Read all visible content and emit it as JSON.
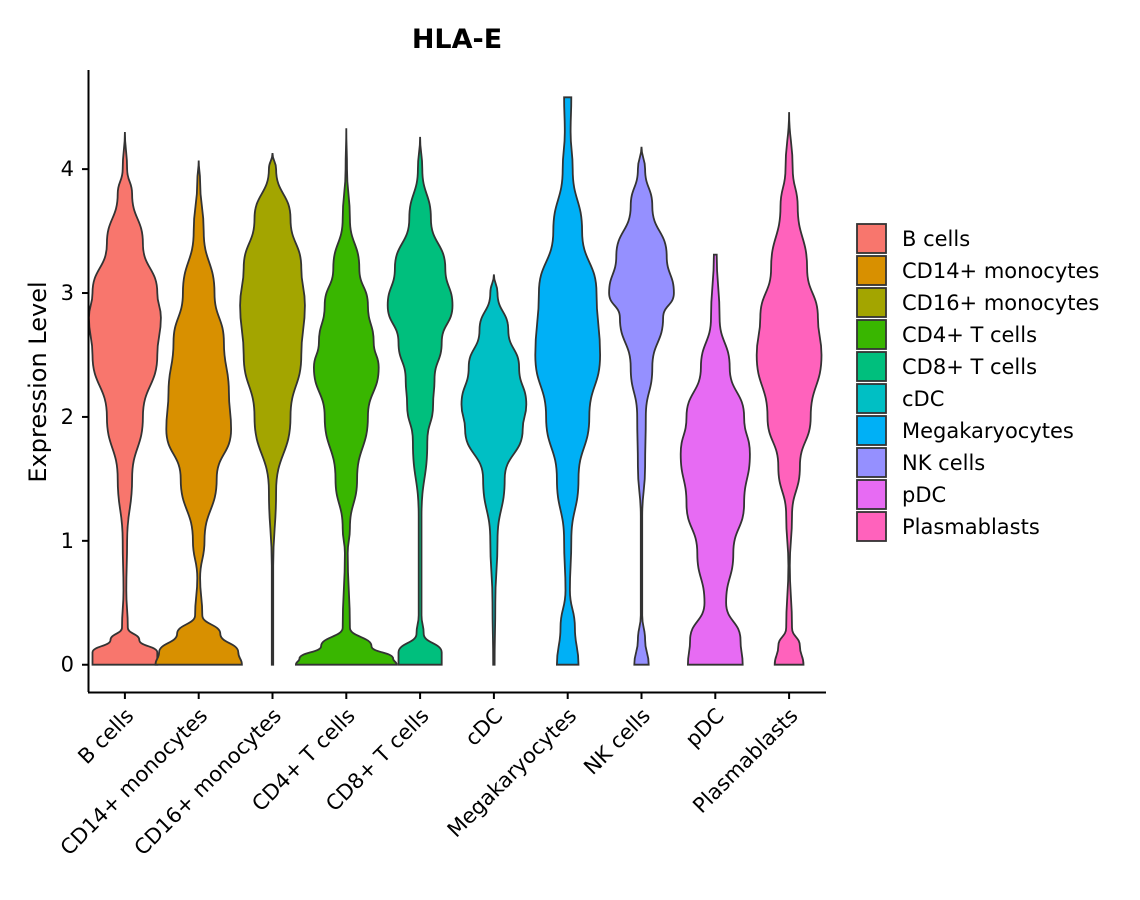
{
  "chart_data": {
    "type": "violin",
    "title": "HLA-E",
    "xlabel": "",
    "ylabel": "Expression Level",
    "ylim": [
      -0.22,
      4.8
    ],
    "yticks": [
      0,
      1,
      2,
      3,
      4
    ],
    "grid": false,
    "legend_position": "right",
    "categories": [
      "B cells",
      "CD14+ monocytes",
      "CD16+ monocytes",
      "CD4+ T cells",
      "CD8+ T cells",
      "cDC",
      "Megakaryocytes",
      "NK cells",
      "pDC",
      "Plasmablasts"
    ],
    "colors": [
      "#F8766D",
      "#D89000",
      "#A3A500",
      "#39B600",
      "#00BF7D",
      "#00BFC4",
      "#00B0F6",
      "#9590FF",
      "#E76BF3",
      "#FF62BC"
    ],
    "series": [
      {
        "name": "B cells",
        "y_range": [
          0,
          4.3
        ],
        "density": [
          [
            0,
            0.45
          ],
          [
            0.1,
            0.45
          ],
          [
            0.2,
            0.2
          ],
          [
            0.3,
            0.04
          ],
          [
            0.6,
            0.02
          ],
          [
            1.0,
            0.03
          ],
          [
            1.5,
            0.1
          ],
          [
            2.0,
            0.25
          ],
          [
            2.5,
            0.45
          ],
          [
            2.8,
            0.5
          ],
          [
            3.0,
            0.45
          ],
          [
            3.4,
            0.25
          ],
          [
            3.8,
            0.1
          ],
          [
            4.0,
            0.03
          ],
          [
            4.3,
            0.0
          ]
        ]
      },
      {
        "name": "CD14+ monocytes",
        "y_range": [
          0,
          4.07
        ],
        "density": [
          [
            0,
            0.6
          ],
          [
            0.1,
            0.55
          ],
          [
            0.25,
            0.3
          ],
          [
            0.4,
            0.05
          ],
          [
            0.7,
            0.02
          ],
          [
            1.0,
            0.08
          ],
          [
            1.5,
            0.25
          ],
          [
            1.9,
            0.45
          ],
          [
            2.2,
            0.42
          ],
          [
            2.6,
            0.35
          ],
          [
            3.0,
            0.22
          ],
          [
            3.5,
            0.07
          ],
          [
            3.9,
            0.02
          ],
          [
            4.07,
            0.0
          ]
        ]
      },
      {
        "name": "CD16+ monocytes",
        "y_range": [
          0,
          4.13
        ],
        "density": [
          [
            0,
            0.01
          ],
          [
            0.8,
            0.01
          ],
          [
            1.4,
            0.05
          ],
          [
            2.0,
            0.25
          ],
          [
            2.5,
            0.4
          ],
          [
            2.9,
            0.45
          ],
          [
            3.2,
            0.4
          ],
          [
            3.6,
            0.25
          ],
          [
            4.0,
            0.05
          ],
          [
            4.13,
            0.0
          ]
        ]
      },
      {
        "name": "CD4+ T cells",
        "y_range": [
          0,
          4.33
        ],
        "density": [
          [
            0,
            0.7
          ],
          [
            0.05,
            0.65
          ],
          [
            0.15,
            0.35
          ],
          [
            0.3,
            0.05
          ],
          [
            0.9,
            0.02
          ],
          [
            1.1,
            0.05
          ],
          [
            1.5,
            0.15
          ],
          [
            2.0,
            0.3
          ],
          [
            2.4,
            0.45
          ],
          [
            2.6,
            0.38
          ],
          [
            2.9,
            0.3
          ],
          [
            3.2,
            0.18
          ],
          [
            3.6,
            0.05
          ],
          [
            4.0,
            0.01
          ],
          [
            4.33,
            0.0
          ]
        ]
      },
      {
        "name": "CD8+ T cells",
        "y_range": [
          0,
          4.26
        ],
        "density": [
          [
            0,
            0.3
          ],
          [
            0.1,
            0.3
          ],
          [
            0.25,
            0.05
          ],
          [
            0.4,
            0.02
          ],
          [
            1.2,
            0.02
          ],
          [
            1.8,
            0.1
          ],
          [
            2.1,
            0.18
          ],
          [
            2.3,
            0.2
          ],
          [
            2.6,
            0.3
          ],
          [
            2.9,
            0.45
          ],
          [
            3.2,
            0.35
          ],
          [
            3.6,
            0.15
          ],
          [
            4.0,
            0.03
          ],
          [
            4.26,
            0.0
          ]
        ]
      },
      {
        "name": "cDC",
        "y_range": [
          0,
          3.15
        ],
        "density": [
          [
            0,
            0.01
          ],
          [
            0.5,
            0.02
          ],
          [
            1.0,
            0.05
          ],
          [
            1.5,
            0.15
          ],
          [
            1.9,
            0.4
          ],
          [
            2.1,
            0.45
          ],
          [
            2.4,
            0.35
          ],
          [
            2.7,
            0.2
          ],
          [
            3.0,
            0.05
          ],
          [
            3.15,
            0.0
          ]
        ]
      },
      {
        "name": "Megakaryocytes",
        "y_range": [
          0,
          4.58
        ],
        "density": [
          [
            0,
            0.15
          ],
          [
            0.3,
            0.1
          ],
          [
            0.6,
            0.03
          ],
          [
            1.0,
            0.05
          ],
          [
            1.5,
            0.15
          ],
          [
            2.0,
            0.3
          ],
          [
            2.5,
            0.45
          ],
          [
            3.0,
            0.4
          ],
          [
            3.5,
            0.2
          ],
          [
            4.0,
            0.07
          ],
          [
            4.3,
            0.04
          ],
          [
            4.58,
            0.05
          ]
        ]
      },
      {
        "name": "NK cells",
        "y_range": [
          0,
          4.18
        ],
        "density": [
          [
            0,
            0.1
          ],
          [
            0.2,
            0.05
          ],
          [
            0.4,
            0.01
          ],
          [
            1.2,
            0.01
          ],
          [
            1.6,
            0.05
          ],
          [
            2.0,
            0.06
          ],
          [
            2.4,
            0.15
          ],
          [
            2.8,
            0.3
          ],
          [
            3.0,
            0.45
          ],
          [
            3.3,
            0.35
          ],
          [
            3.7,
            0.15
          ],
          [
            4.0,
            0.05
          ],
          [
            4.18,
            0.0
          ]
        ]
      },
      {
        "name": "pDC",
        "y_range": [
          0,
          3.31
        ],
        "density": [
          [
            0,
            0.38
          ],
          [
            0.2,
            0.35
          ],
          [
            0.5,
            0.15
          ],
          [
            0.9,
            0.25
          ],
          [
            1.3,
            0.4
          ],
          [
            1.7,
            0.48
          ],
          [
            2.0,
            0.4
          ],
          [
            2.4,
            0.2
          ],
          [
            2.8,
            0.06
          ],
          [
            3.31,
            0.02
          ]
        ]
      },
      {
        "name": "Plasmablasts",
        "y_range": [
          0,
          4.46
        ],
        "density": [
          [
            0,
            0.2
          ],
          [
            0.15,
            0.15
          ],
          [
            0.3,
            0.04
          ],
          [
            0.8,
            0.01
          ],
          [
            1.2,
            0.04
          ],
          [
            1.6,
            0.15
          ],
          [
            2.0,
            0.3
          ],
          [
            2.5,
            0.45
          ],
          [
            2.8,
            0.4
          ],
          [
            3.2,
            0.25
          ],
          [
            3.7,
            0.12
          ],
          [
            4.0,
            0.05
          ],
          [
            4.46,
            0.0
          ]
        ]
      }
    ]
  }
}
